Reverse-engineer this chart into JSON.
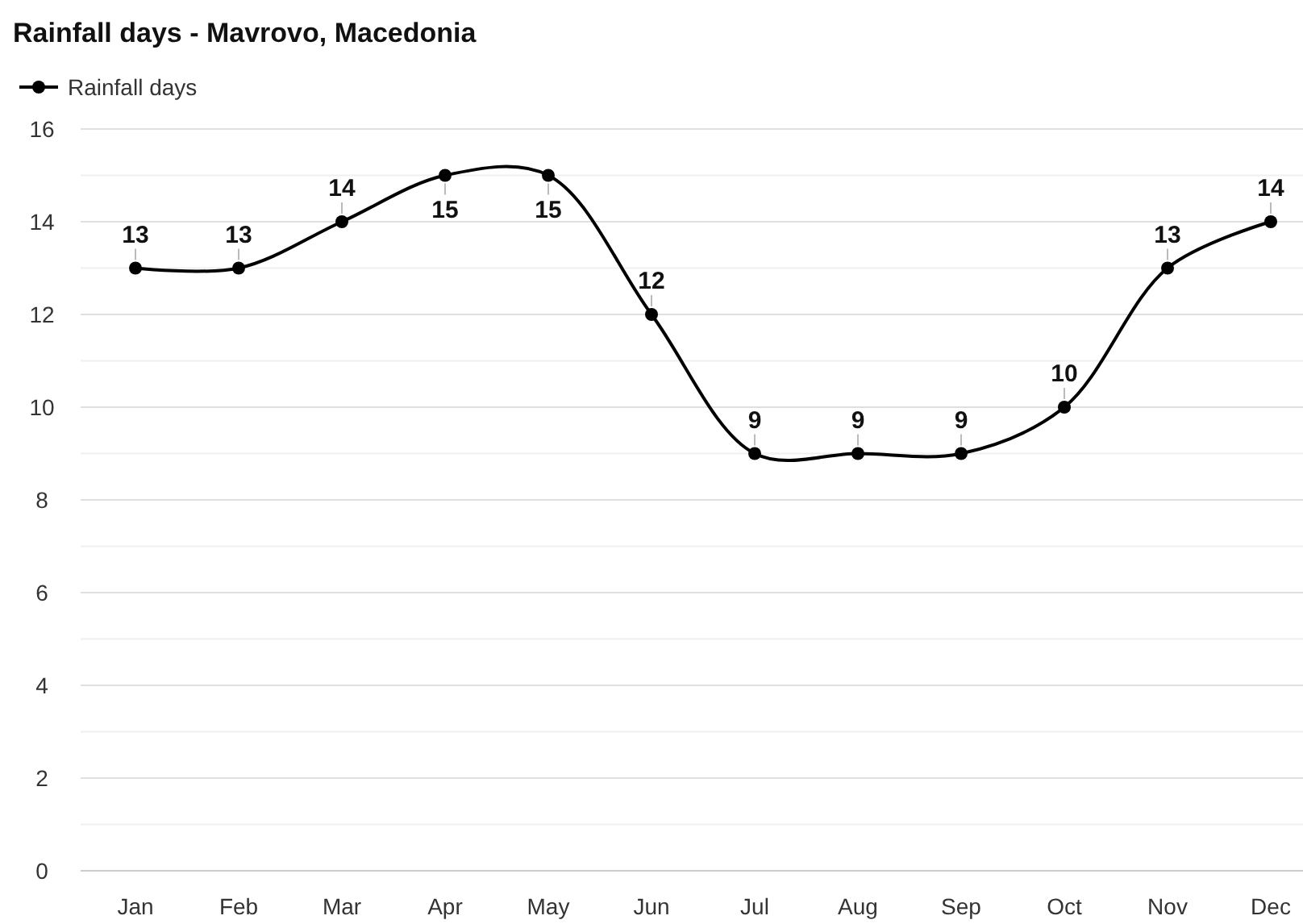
{
  "chart_data": {
    "type": "line",
    "title": "Rainfall days - Mavrovo, Macedonia",
    "categories": [
      "Jan",
      "Feb",
      "Mar",
      "Apr",
      "May",
      "Jun",
      "Jul",
      "Aug",
      "Sep",
      "Oct",
      "Nov",
      "Dec"
    ],
    "series": [
      {
        "name": "Rainfall days",
        "color": "#000000",
        "values": [
          13,
          13,
          14,
          15,
          15,
          12,
          9,
          9,
          9,
          10,
          13,
          14
        ]
      }
    ],
    "ylim": [
      0,
      16
    ],
    "yticks": [
      0,
      {
        "value": 1,
        "label": null
      },
      2,
      {
        "value": 3,
        "label": null
      },
      4,
      {
        "value": 5,
        "label": null
      },
      6,
      {
        "value": 7,
        "label": null
      },
      8,
      {
        "value": 9,
        "label": null
      },
      10,
      {
        "value": 11,
        "label": null
      },
      12,
      {
        "value": 13,
        "label": null
      },
      14,
      {
        "value": 15,
        "label": null
      },
      16
    ],
    "grid": "y",
    "legend": "top left",
    "marker": "circle",
    "line_style": "solid",
    "data_labels": true
  }
}
